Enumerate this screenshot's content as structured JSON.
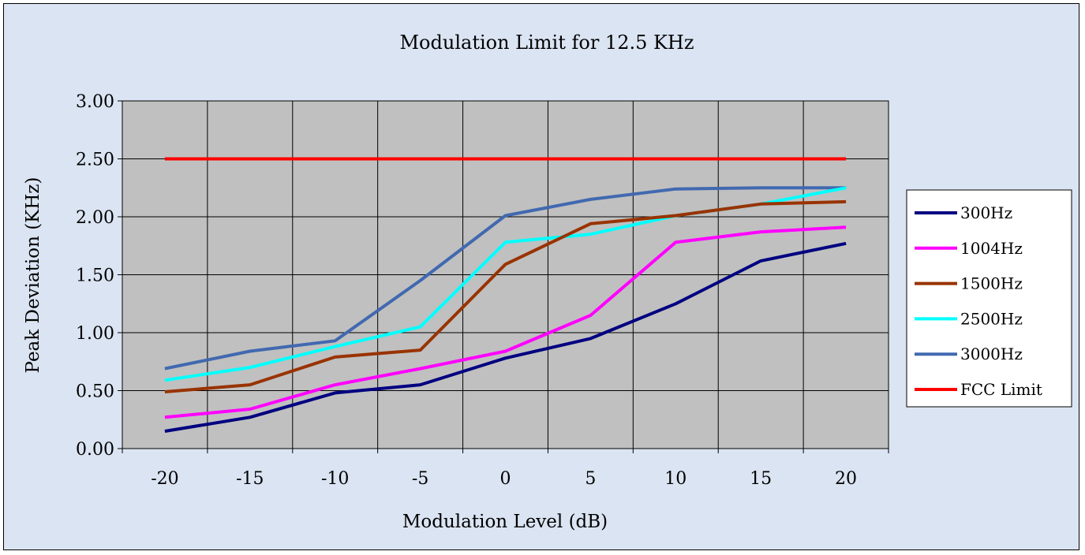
{
  "chart_data": {
    "type": "line",
    "title": "Modulation Limit for 12.5 KHz",
    "xlabel": "Modulation Level (dB)",
    "ylabel": "Peak Deviation (KHz)",
    "x": [
      -20,
      -15,
      -10,
      -5,
      0,
      5,
      10,
      15,
      20
    ],
    "x_tick_labels": [
      "-20",
      "-15",
      "-10",
      "-5",
      "0",
      "5",
      "10",
      "15",
      "20"
    ],
    "ylim": [
      0,
      3
    ],
    "y_ticks": [
      0,
      0.5,
      1,
      1.5,
      2,
      2.5,
      3
    ],
    "y_tick_labels": [
      "0.00",
      "0.50",
      "1.00",
      "1.50",
      "2.00",
      "2.50",
      "3.00"
    ],
    "grid": true,
    "legend_position": "right",
    "plot_background": "#c0c0c0",
    "chart_background": "#dbe4f2",
    "series": [
      {
        "name": "300Hz",
        "color": "#000080",
        "values": [
          0.15,
          0.27,
          0.48,
          0.55,
          0.78,
          0.95,
          1.25,
          1.62,
          1.77
        ]
      },
      {
        "name": "1004Hz",
        "color": "#ff00ff",
        "values": [
          0.27,
          0.34,
          0.55,
          0.69,
          0.84,
          1.15,
          1.78,
          1.87,
          1.91
        ]
      },
      {
        "name": "1500Hz",
        "color": "#993300",
        "values": [
          0.49,
          0.55,
          0.79,
          0.85,
          1.59,
          1.94,
          2.01,
          2.11,
          2.13
        ]
      },
      {
        "name": "2500Hz",
        "color": "#00ffff",
        "values": [
          0.59,
          0.7,
          0.88,
          1.05,
          1.78,
          1.85,
          2.01,
          2.11,
          2.25
        ]
      },
      {
        "name": "3000Hz",
        "color": "#4169b0",
        "values": [
          0.69,
          0.84,
          0.93,
          1.45,
          2.01,
          2.15,
          2.24,
          2.25,
          2.25
        ]
      },
      {
        "name": "FCC Limit",
        "color": "#ff0000",
        "values": [
          2.5,
          2.5,
          2.5,
          2.5,
          2.5,
          2.5,
          2.5,
          2.5,
          2.5
        ]
      }
    ]
  }
}
